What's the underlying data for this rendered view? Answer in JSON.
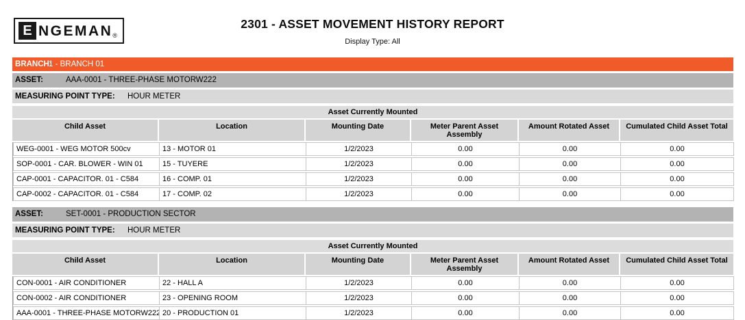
{
  "logo": {
    "e": "E",
    "rest": "NGEMAN",
    "reg": "®"
  },
  "header": {
    "title": "2301 - ASSET MOVEMENT HISTORY REPORT",
    "display_type": "Display Type: All"
  },
  "branch": {
    "label": "BRANCH:",
    "value": "1 - BRANCH 01"
  },
  "labels": {
    "asset": "ASSET:",
    "measuring_point_type": "MEASURING POINT TYPE:"
  },
  "group_header": "Asset Currently Mounted",
  "columns": [
    "Child Asset",
    "Location",
    "Mounting Date",
    "Meter Parent Asset Assembly",
    "Amount Rotated Asset",
    "Cumulated Child Asset Total"
  ],
  "sections": [
    {
      "asset": "AAA-0001 - THREE-PHASE MOTORW222",
      "measuring_point_type": "HOUR METER",
      "rows": [
        [
          "WEG-0001 - WEG MOTOR 500cv",
          "13 - MOTOR 01",
          "1/2/2023",
          "0.00",
          "0.00",
          "0.00"
        ],
        [
          "SOP-0001 - CAR. BLOWER - WIN 01",
          "15 - TUYERE",
          "1/2/2023",
          "0.00",
          "0.00",
          "0.00"
        ],
        [
          "CAP-0001 - CAPACITOR. 01 - C584",
          "16 - COMP. 01",
          "1/2/2023",
          "0.00",
          "0.00",
          "0.00"
        ],
        [
          "CAP-0002 - CAPACITOR. 01 - C584",
          "17 - COMP. 02",
          "1/2/2023",
          "0.00",
          "0.00",
          "0.00"
        ]
      ]
    },
    {
      "asset": "SET-0001 - PRODUCTION SECTOR",
      "measuring_point_type": "HOUR METER",
      "rows": [
        [
          "CON-0001 - AIR CONDITIONER",
          "22 - HALL A",
          "1/2/2023",
          "0.00",
          "0.00",
          "0.00"
        ],
        [
          "CON-0002 - AIR CONDITIONER",
          "23 - OPENING ROOM",
          "1/2/2023",
          "0.00",
          "0.00",
          "0.00"
        ],
        [
          "AAA-0001 - THREE-PHASE MOTORW222",
          "20 - PRODUCTION 01",
          "1/2/2023",
          "0.00",
          "0.00",
          "0.00"
        ]
      ]
    }
  ],
  "colors": {
    "accent_orange": "#F15A29",
    "band_gray": "#B3B3B3",
    "band_light_gray": "#D9D9D9",
    "group_band_gray": "#DCDCDC",
    "header_cell_gray": "#D3D3D3",
    "cell_border": "#C4C4C4"
  }
}
